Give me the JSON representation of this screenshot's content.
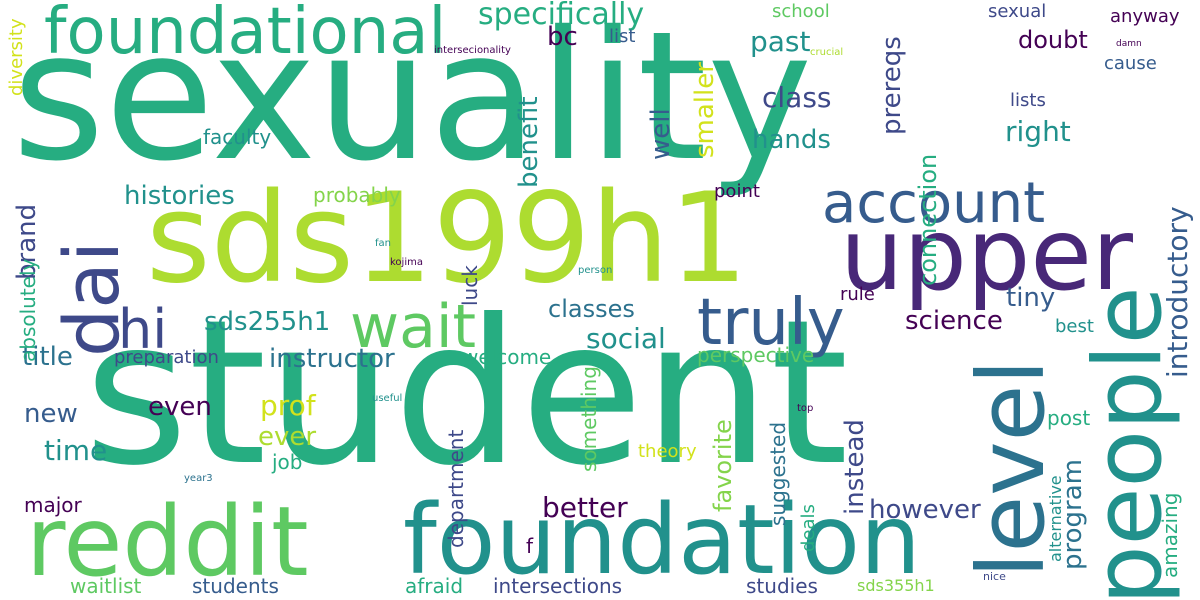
{
  "palette": {
    "teal": "#26ad81",
    "lime": "#addc30",
    "purple": "#482878",
    "dark_purple": "#440154",
    "blue": "#365c8d",
    "slate": "#3e4989",
    "green": "#5ec962",
    "cyan": "#1f9e89",
    "dark_teal": "#21918c",
    "steel": "#2c728e",
    "yellow_green": "#d2e21b",
    "light_green": "#84d44b"
  },
  "words": [
    "sexuality",
    "student",
    "sds199h1",
    "upper",
    "foundation",
    "reddit",
    "people",
    "level",
    "foundational",
    "truly",
    "account",
    "dai",
    "wait",
    "hi",
    "specifically",
    "class",
    "past",
    "doubt",
    "bc",
    "list",
    "science",
    "connection",
    "prereqs",
    "right",
    "hands",
    "smaller",
    "well",
    "benefit",
    "introductory",
    "program",
    "amazing",
    "tiny",
    "rule",
    "histories",
    "brand",
    "probably",
    "classes",
    "social",
    "sds255h1",
    "title",
    "instructor",
    "preparation",
    "welcome",
    "perspective",
    "new",
    "even",
    "prof",
    "ever",
    "time",
    "job",
    "instead",
    "favorite",
    "suggested",
    "however",
    "better",
    "major",
    "department",
    "something",
    "theory",
    "studies",
    "waitlist",
    "students",
    "afraid",
    "intersections",
    "sds355h1",
    "nice",
    "alternative",
    "post",
    "best",
    "lists",
    "cause",
    "sexual",
    "anyway",
    "damn",
    "crucial",
    "intersecionality",
    "school",
    "deals",
    "faculty",
    "point",
    "diversity",
    "fan",
    "kojima",
    "person",
    "luck",
    "useful",
    "top",
    "year3",
    "absolutely",
    "f"
  ]
}
